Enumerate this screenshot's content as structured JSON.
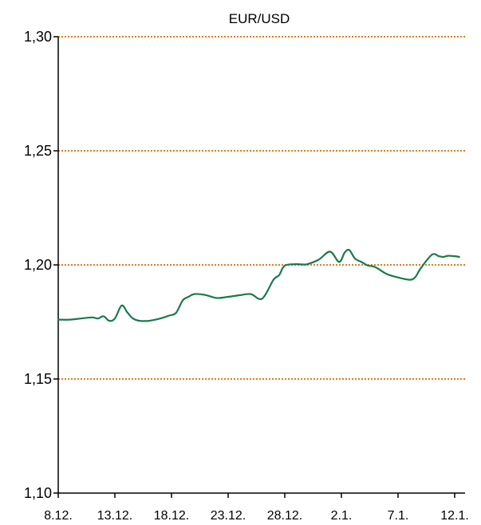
{
  "chart_data": {
    "type": "line",
    "title": "EUR/USD",
    "xlabel": "",
    "ylabel": "",
    "ylim": [
      1.1,
      1.3
    ],
    "yticks": [
      "1,10",
      "1,15",
      "1,20",
      "1,25",
      "1,30"
    ],
    "ytick_values": [
      1.1,
      1.15,
      1.2,
      1.25,
      1.3
    ],
    "xtick_labels": [
      "8.12.",
      "13.12.",
      "18.12.",
      "23.12.",
      "28.12.",
      "2.1.",
      "7.1.",
      "12.1."
    ],
    "xtick_days": [
      0,
      5,
      10,
      15,
      20,
      25,
      30,
      35
    ],
    "xlim_days": [
      0,
      35.5
    ],
    "grid": "horizontal-dotted",
    "line_color": "#1a7a4c",
    "grid_color": "#e07b1e",
    "series": [
      {
        "x": [
          0,
          1,
          2,
          3,
          3.5,
          4,
          4.5,
          5,
          5.6,
          6.1,
          6.6,
          7.2,
          8,
          9,
          9.8,
          10.4,
          11,
          11.5,
          12,
          13,
          14,
          15,
          16,
          17,
          18,
          19,
          19.5,
          20,
          21,
          21.5,
          22,
          23,
          24,
          24.8,
          25.3,
          25.7,
          26.2,
          26.8,
          27.3,
          28,
          29,
          30,
          31,
          31.5,
          32,
          33,
          33.6,
          34,
          34.4,
          35,
          35.4
        ],
        "y": [
          1.176,
          1.176,
          1.1765,
          1.177,
          1.1765,
          1.1775,
          1.1755,
          1.1765,
          1.1822,
          1.1792,
          1.1765,
          1.1755,
          1.1755,
          1.1765,
          1.1778,
          1.179,
          1.1845,
          1.186,
          1.1872,
          1.1868,
          1.1855,
          1.186,
          1.1867,
          1.1872,
          1.1852,
          1.1935,
          1.1955,
          1.1997,
          1.2003,
          1.2002,
          1.2003,
          1.2023,
          1.2058,
          1.2013,
          1.2055,
          1.2065,
          1.2028,
          1.2012,
          1.1998,
          1.199,
          1.196,
          1.1945,
          1.1935,
          1.1945,
          1.1985,
          1.2045,
          1.2038,
          1.2035,
          1.204,
          1.2038,
          1.2035
        ]
      }
    ]
  }
}
